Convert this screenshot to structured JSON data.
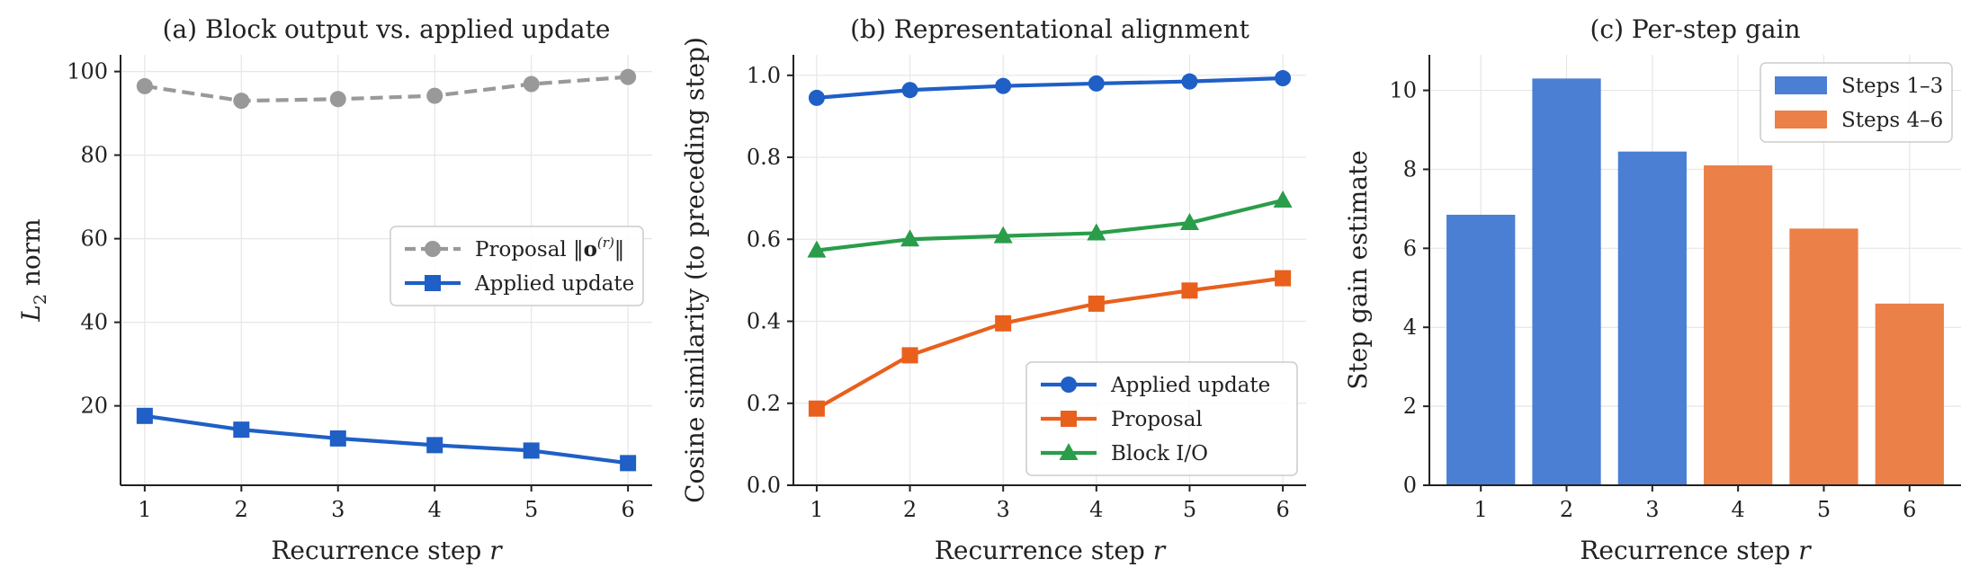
{
  "chart_data": [
    {
      "type": "line",
      "title": "(a) Block output vs. applied update",
      "xlabel": "Recurrence step r",
      "ylabel": "L2 norm",
      "x": [
        1,
        2,
        3,
        4,
        5,
        6
      ],
      "xlim": [
        0.75,
        6.25
      ],
      "ylim": [
        1,
        104
      ],
      "yticks": [
        20,
        40,
        60,
        80,
        100
      ],
      "grid": true,
      "legend_position": "center-right",
      "series": [
        {
          "name": "Proposal ‖o(r)‖",
          "values": [
            96.5,
            93,
            93.4,
            94.2,
            97,
            98.7
          ],
          "color": "#999999",
          "style": "dashed",
          "marker": "circle"
        },
        {
          "name": "Applied update",
          "values": [
            17.6,
            14.3,
            12.2,
            10.6,
            9.3,
            6.3
          ],
          "color": "#1f5fc6",
          "style": "solid",
          "marker": "square"
        }
      ]
    },
    {
      "type": "line",
      "title": "(b) Representational alignment",
      "xlabel": "Recurrence step r",
      "ylabel": "Cosine similarity (to preceding step)",
      "x": [
        1,
        2,
        3,
        4,
        5,
        6
      ],
      "xlim": [
        0.75,
        6.25
      ],
      "ylim": [
        0,
        1.05
      ],
      "yticks": [
        0.0,
        0.2,
        0.4,
        0.6,
        0.8,
        1.0
      ],
      "grid": true,
      "legend_position": "bottom-right",
      "series": [
        {
          "name": "Applied update",
          "values": [
            0.945,
            0.964,
            0.974,
            0.98,
            0.985,
            0.993
          ],
          "color": "#1f5fc6",
          "marker": "circle"
        },
        {
          "name": "Proposal",
          "values": [
            0.187,
            0.317,
            0.395,
            0.443,
            0.475,
            0.505
          ],
          "color": "#e8601c",
          "marker": "square"
        },
        {
          "name": "Block I/O",
          "values": [
            0.573,
            0.6,
            0.608,
            0.615,
            0.64,
            0.695
          ],
          "color": "#2a9d4a",
          "marker": "triangle"
        }
      ]
    },
    {
      "type": "bar",
      "title": "(c) Per-step gain",
      "xlabel": "Recurrence step r",
      "ylabel": "Step gain estimate",
      "categories": [
        "1",
        "2",
        "3",
        "4",
        "5",
        "6"
      ],
      "values": [
        6.85,
        10.3,
        8.45,
        8.1,
        6.5,
        4.6
      ],
      "colors": [
        "#4a7fd4",
        "#4a7fd4",
        "#4a7fd4",
        "#eb8049",
        "#eb8049",
        "#eb8049"
      ],
      "ylim": [
        0,
        10.9
      ],
      "yticks": [
        0,
        2,
        4,
        6,
        8,
        10
      ],
      "grid": true,
      "legend_position": "top-right",
      "legend": [
        {
          "name": "Steps 1–3",
          "color": "#4a7fd4"
        },
        {
          "name": "Steps 4–6",
          "color": "#eb8049"
        }
      ]
    }
  ]
}
